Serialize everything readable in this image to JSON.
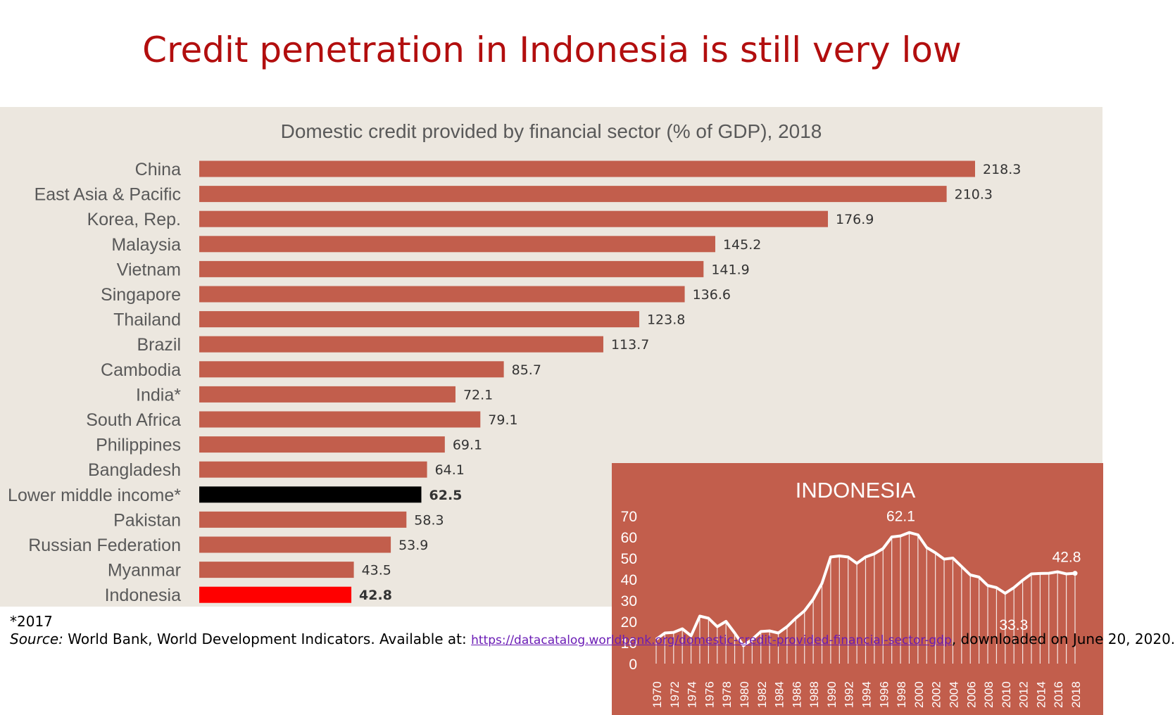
{
  "page_title": "Credit penetration in Indonesia is still very low",
  "footnote": "*2017",
  "source": {
    "label": "Source:",
    "text": "World Bank, World Development Indicators. Available at:",
    "link": "https://datacatalog.worldbank.org/domestic-credit-provided-financial-sector-gdp",
    "suffix": ", downloaded on June 20, 2020."
  },
  "colors": {
    "title": "#b20e0e",
    "panel_background": "#ece7df",
    "bar_default": "#c25e4c",
    "bar_lower_middle_income": "#000000",
    "bar_indonesia": "#ff0000",
    "inset_background": "#c25e4c",
    "inset_line": "#ffffff"
  },
  "chart_data": [
    {
      "type": "bar",
      "orientation": "horizontal",
      "title": "Domestic credit provided by financial sector (% of GDP), 2018",
      "categories": [
        "China",
        "East Asia & Pacific",
        "Korea, Rep.",
        "Malaysia",
        "Vietnam",
        "Singapore",
        "Thailand",
        "Brazil",
        "Cambodia",
        "India*",
        "South Africa",
        "Philippines",
        "Bangladesh",
        "Lower middle income*",
        "Pakistan",
        "Russian Federation",
        "Myanmar",
        "Indonesia"
      ],
      "values": [
        218.3,
        210.3,
        176.9,
        145.2,
        141.9,
        136.6,
        123.8,
        113.7,
        85.7,
        72.1,
        79.1,
        69.1,
        64.1,
        62.5,
        58.3,
        53.9,
        43.5,
        42.8
      ],
      "data_labels": [
        "218.3",
        "210.3",
        "176.9",
        "145.2",
        "141.9",
        "136.6",
        "123.8",
        "113.7",
        "85.7",
        "72.1",
        "79.1",
        "69.1",
        "64.1",
        "62.5",
        "58.3",
        "53.9",
        "43.5",
        "42.8"
      ],
      "highlight": {
        "Lower middle income*": "#000000",
        "Indonesia": "#ff0000"
      },
      "bold_labels": [
        "Lower middle income*",
        "Indonesia"
      ],
      "grid": false
    },
    {
      "type": "area",
      "title": "INDONESIA",
      "x": [
        1970,
        1971,
        1972,
        1973,
        1974,
        1975,
        1976,
        1977,
        1978,
        1979,
        1980,
        1981,
        1982,
        1983,
        1984,
        1985,
        1986,
        1987,
        1988,
        1989,
        1990,
        1991,
        1992,
        1993,
        1994,
        1995,
        1996,
        1997,
        1998,
        1999,
        2000,
        2001,
        2002,
        2003,
        2004,
        2005,
        2006,
        2007,
        2008,
        2009,
        2010,
        2011,
        2012,
        2013,
        2014,
        2015,
        2016,
        2017,
        2018
      ],
      "x_tick_labels": [
        "1970",
        "1972",
        "1974",
        "1976",
        "1978",
        "1980",
        "1982",
        "1984",
        "1986",
        "1988",
        "1990",
        "1992",
        "1994",
        "1996",
        "1998",
        "2000",
        "2002",
        "2004",
        "2006",
        "2008",
        "2010",
        "2012",
        "2014",
        "2016",
        "2018"
      ],
      "values": [
        11.5,
        14.5,
        14.8,
        16.5,
        13.2,
        22.5,
        21.5,
        17.5,
        20,
        14.5,
        8.5,
        11.5,
        15.2,
        15.5,
        14.5,
        17.5,
        21.5,
        25,
        30.5,
        38,
        50.5,
        51,
        50.5,
        47.5,
        50.5,
        52,
        54.5,
        60,
        60.5,
        62.1,
        61,
        55,
        52.5,
        49.5,
        50,
        46,
        42,
        41,
        37,
        36,
        33.3,
        36,
        39.5,
        42.5,
        42.7,
        42.8,
        43.5,
        42.5,
        42.8
      ],
      "y_tick_labels": [
        "0",
        "10",
        "20",
        "30",
        "40",
        "50",
        "60",
        "70"
      ],
      "ylim": [
        0,
        70
      ],
      "annotations": [
        {
          "x": 1999,
          "text": "62.1"
        },
        {
          "x": 2010,
          "text": "33.3"
        },
        {
          "x": 2018,
          "text": "42.8"
        }
      ],
      "grid": false
    }
  ]
}
